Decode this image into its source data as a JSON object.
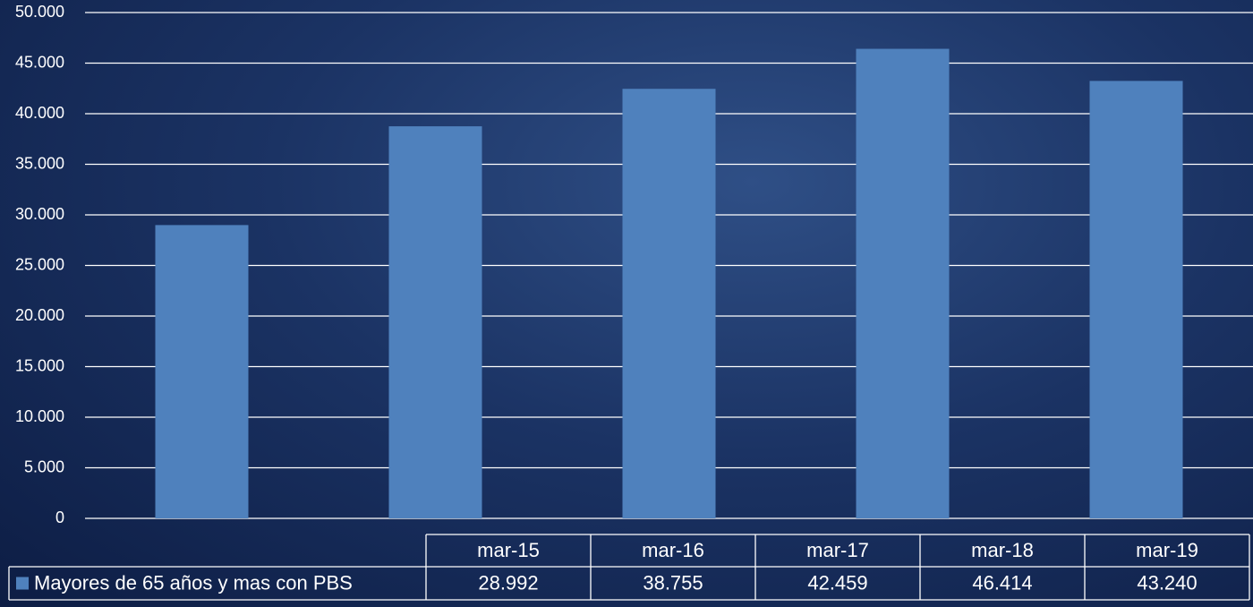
{
  "chart_data": {
    "type": "bar",
    "categories": [
      "mar-15",
      "mar-16",
      "mar-17",
      "mar-18",
      "mar-19"
    ],
    "series": [
      {
        "name": "Mayores de 65 años y mas con PBS",
        "color": "#4f81bd",
        "values": [
          28992,
          38755,
          42459,
          46414,
          43240
        ],
        "value_labels": [
          "28.992",
          "38.755",
          "42.459",
          "46.414",
          "43.240"
        ]
      }
    ],
    "ylim": [
      0,
      50000
    ],
    "yticks": [
      0,
      {
        "value": 5000,
        "label": "5.000"
      },
      {
        "value": 10000,
        "label": "10.000"
      },
      {
        "value": 15000,
        "label": "15.000"
      },
      {
        "value": 20000,
        "label": "20.000"
      },
      {
        "value": 25000,
        "label": "25.000"
      },
      {
        "value": 30000,
        "label": "30.000"
      },
      {
        "value": 35000,
        "label": "35.000"
      },
      {
        "value": 40000,
        "label": "40.000"
      },
      {
        "value": 45000,
        "label": "45.000"
      },
      {
        "value": 50000,
        "label": "50.000"
      }
    ],
    "grid": true
  }
}
